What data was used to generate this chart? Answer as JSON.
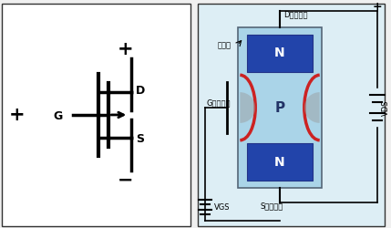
{
  "bg_color": "#f0f0f0",
  "left_bg": "#ffffff",
  "right_bg": "#ddeef5",
  "border_color": "#333333",
  "blue_color": "#2244aa",
  "red_arc_color": "#cc2222",
  "title_d": "D",
  "title_s": "S",
  "title_g": "G",
  "label_d": "D（漏极）",
  "label_s": "S（源极）",
  "label_g": "G（栈极）",
  "label_oxide": "氧化层",
  "label_vgs": "VGS",
  "label_vds": "VDS"
}
